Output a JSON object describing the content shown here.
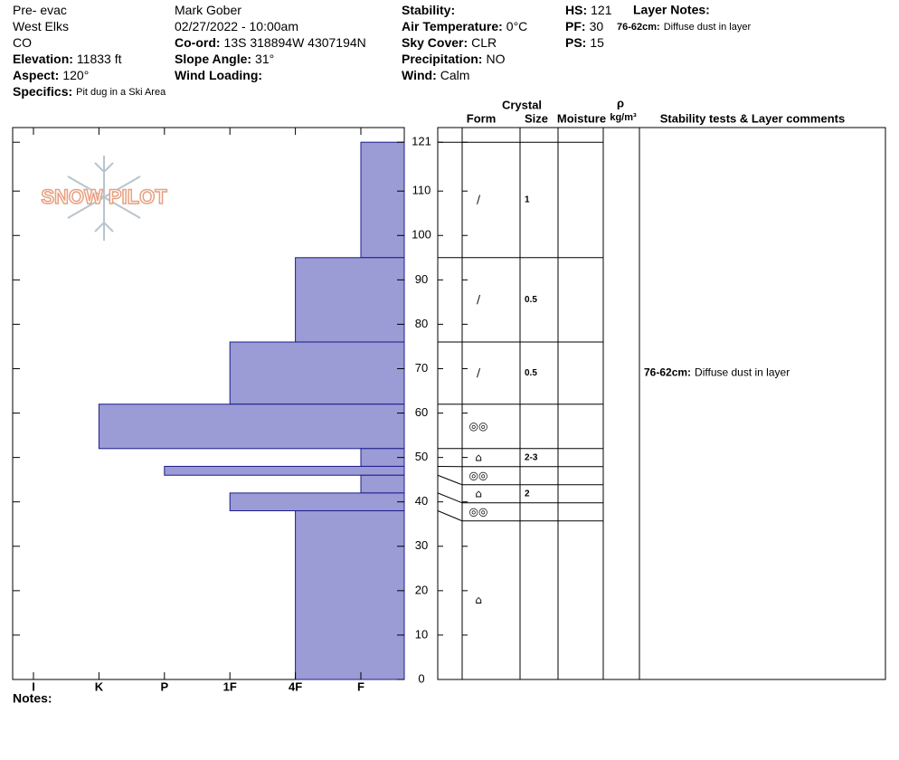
{
  "header": {
    "pit_name": {
      "value": "Pre- evac"
    },
    "range": {
      "value": "West Elks"
    },
    "state": {
      "value": "CO"
    },
    "elevation": {
      "label": "Elevation:",
      "value": "11833 ft"
    },
    "aspect": {
      "label": "Aspect:",
      "value": "120°"
    },
    "specifics": {
      "label": "Specifics:",
      "value": "Pit dug in a Ski Area"
    },
    "observer": {
      "value": "Mark Gober"
    },
    "datetime": {
      "value": "02/27/2022 - 10:00am"
    },
    "coord": {
      "label": "Co-ord:",
      "value": "13S 318894W 4307194N"
    },
    "slope": {
      "label": "Slope Angle:",
      "value": "31°"
    },
    "wind_loading": {
      "label": "Wind Loading:"
    },
    "stability": {
      "label": "Stability:"
    },
    "air_temp": {
      "label": "Air Temperature:",
      "value": "0°C"
    },
    "sky": {
      "label": "Sky Cover:",
      "value": "CLR"
    },
    "precip": {
      "label": "Precipitation:",
      "value": "NO"
    },
    "wind": {
      "label": "Wind:",
      "value": "Calm"
    },
    "hs": {
      "label": "HS:",
      "value": 121
    },
    "pf": {
      "label": "PF:",
      "value": 30
    },
    "ps": {
      "label": "PS:",
      "value": 15
    },
    "layer_notes": {
      "label": "Layer Notes:",
      "note_range": "76-62cm:",
      "note": "Diffuse dust in layer"
    }
  },
  "logo": "SNOW PILOT",
  "notes_label": "Notes:",
  "columns": {
    "crystal": "Crystal",
    "form": "Form",
    "size": "Size",
    "moisture": "Moisture",
    "rho": "ρ",
    "density_unit": "kg/m³",
    "comments": "Stability tests & Layer comments"
  },
  "chart_data": {
    "type": "snow-profile",
    "ylim": [
      0,
      124.3
    ],
    "yticks": [
      0,
      10,
      20,
      30,
      40,
      50,
      60,
      70,
      80,
      90,
      100,
      110,
      121
    ],
    "categories": [
      "I",
      "K",
      "P",
      "1F",
      "4F",
      "F"
    ],
    "layers": [
      {
        "top": 121,
        "bottom": 95,
        "hardness": "F",
        "form": "/",
        "size": "1"
      },
      {
        "top": 95,
        "bottom": 76,
        "hardness": "4F",
        "form": "/",
        "size": "0.5"
      },
      {
        "top": 76,
        "bottom": 62,
        "hardness": "1F",
        "form": "/",
        "size": "0.5"
      },
      {
        "top": 62,
        "bottom": 52,
        "hardness": "K",
        "form": "◎◎"
      },
      {
        "top": 52,
        "bottom": 48,
        "hardness": "F",
        "form": "⌂",
        "size": "2-3"
      },
      {
        "top": 48,
        "bottom": 46,
        "hardness": "P",
        "form": "◎◎"
      },
      {
        "top": 46,
        "bottom": 42,
        "hardness": "F",
        "form": "⌂",
        "size": "2"
      },
      {
        "top": 42,
        "bottom": 38,
        "hardness": "1F",
        "form": "◎◎"
      },
      {
        "top": 38,
        "bottom": 0,
        "hardness": "4F",
        "form": "⌂"
      }
    ],
    "comment_layer": 2
  }
}
